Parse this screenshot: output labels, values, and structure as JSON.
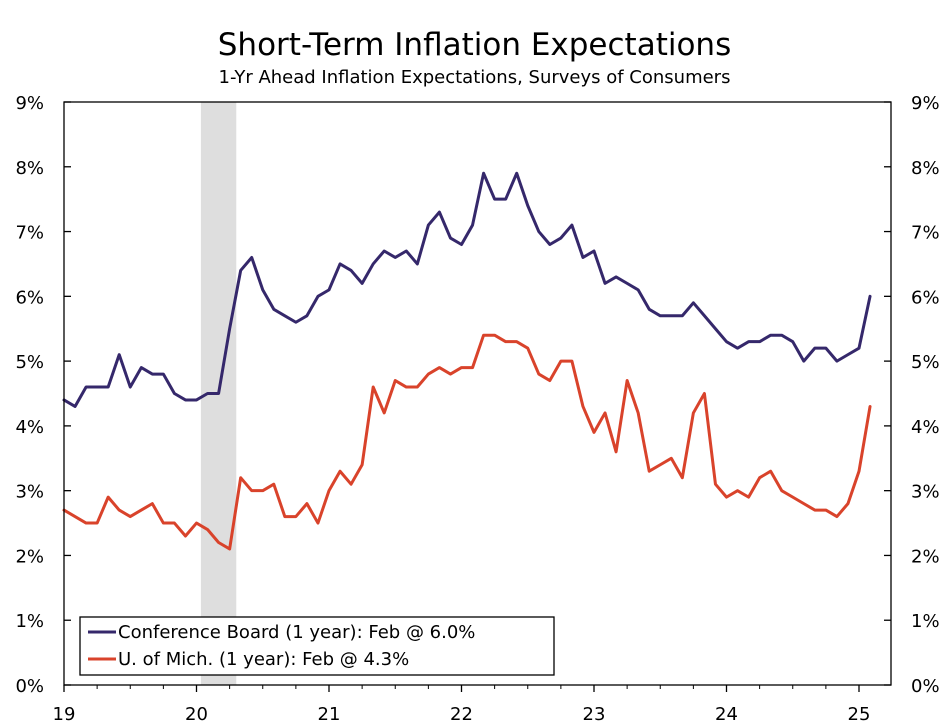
{
  "chart_data": {
    "type": "line",
    "title": "Short-Term Inflation Expectations",
    "subtitle": "1-Yr Ahead Inflation Expectations, Surveys of Consumers",
    "ylim": [
      0,
      9
    ],
    "y_ticks": [
      "0%",
      "1%",
      "2%",
      "3%",
      "4%",
      "5%",
      "6%",
      "7%",
      "8%",
      "9%"
    ],
    "x_ticks": [
      "19",
      "20",
      "21",
      "22",
      "23",
      "24",
      "25"
    ],
    "x_start": "2019-01",
    "recession_shading": {
      "start": "2020-02",
      "end": "2020-04"
    },
    "grid": false,
    "legend_placement": "bottom-left",
    "series": [
      {
        "name": "Conference Board (1 year): Feb @ 6.0%",
        "color": "#35286b",
        "values": [
          4.4,
          4.3,
          4.6,
          4.6,
          4.6,
          5.1,
          4.6,
          4.9,
          4.8,
          4.8,
          4.5,
          4.4,
          4.4,
          4.5,
          4.5,
          5.5,
          6.4,
          6.6,
          6.1,
          5.8,
          5.7,
          5.6,
          5.7,
          6.0,
          6.1,
          6.5,
          6.4,
          6.2,
          6.5,
          6.7,
          6.6,
          6.7,
          6.5,
          7.1,
          7.3,
          6.9,
          6.8,
          7.1,
          7.9,
          7.5,
          7.5,
          7.9,
          7.4,
          7.0,
          6.8,
          6.9,
          7.1,
          6.6,
          6.7,
          6.2,
          6.3,
          6.2,
          6.1,
          5.8,
          5.7,
          5.7,
          5.7,
          5.9,
          5.7,
          5.5,
          5.3,
          5.2,
          5.3,
          5.3,
          5.4,
          5.4,
          5.3,
          5.0,
          5.2,
          5.2,
          5.0,
          5.1,
          5.2,
          6.0
        ]
      },
      {
        "name": "U. of Mich. (1 year): Feb @ 4.3%",
        "color": "#d9432b",
        "values": [
          2.7,
          2.6,
          2.5,
          2.5,
          2.9,
          2.7,
          2.6,
          2.7,
          2.8,
          2.5,
          2.5,
          2.3,
          2.5,
          2.4,
          2.2,
          2.1,
          3.2,
          3.0,
          3.0,
          3.1,
          2.6,
          2.6,
          2.8,
          2.5,
          3.0,
          3.3,
          3.1,
          3.4,
          4.6,
          4.2,
          4.7,
          4.6,
          4.6,
          4.8,
          4.9,
          4.8,
          4.9,
          4.9,
          5.4,
          5.4,
          5.3,
          5.3,
          5.2,
          4.8,
          4.7,
          5.0,
          5.0,
          4.3,
          3.9,
          4.2,
          3.6,
          4.7,
          4.2,
          3.3,
          3.4,
          3.5,
          3.2,
          4.2,
          4.5,
          3.1,
          2.9,
          3.0,
          2.9,
          3.2,
          3.3,
          3.0,
          2.9,
          2.8,
          2.7,
          2.7,
          2.6,
          2.8,
          3.3,
          4.3
        ]
      }
    ]
  }
}
